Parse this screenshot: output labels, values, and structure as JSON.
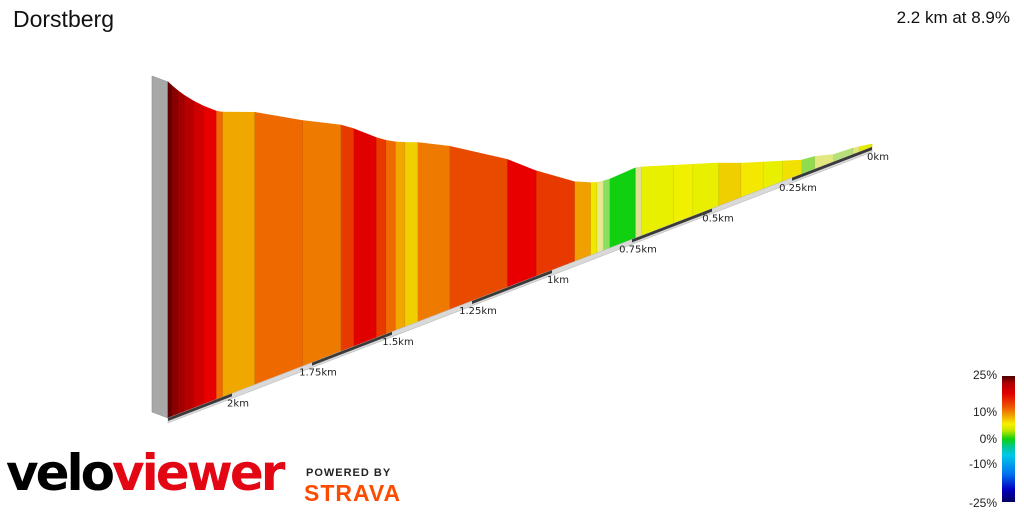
{
  "header": {
    "title": "Dorstberg",
    "summary": "2.2 km at 8.9%"
  },
  "chart_data": {
    "type": "area",
    "title": "Dorstberg",
    "subtitle": "2.2 km at 8.9%",
    "x_unit": "km",
    "x_ticks": [
      "0km",
      "0.25km",
      "0.5km",
      "0.75km",
      "1km",
      "1.25km",
      "1.5km",
      "1.75km",
      "2km"
    ],
    "x_tick_values": [
      0,
      0.25,
      0.5,
      0.75,
      1.0,
      1.25,
      1.5,
      1.75,
      2.0
    ],
    "xlim": [
      0,
      2.2
    ],
    "segments": [
      {
        "start": 0.0,
        "end": 0.04,
        "grade": 3,
        "color": "#e5ea00"
      },
      {
        "start": 0.04,
        "end": 0.06,
        "grade": 3,
        "color": "#e0e87a"
      },
      {
        "start": 0.06,
        "end": 0.12,
        "grade": 1,
        "color": "#b8e07a"
      },
      {
        "start": 0.12,
        "end": 0.18,
        "grade": 5,
        "color": "#e3e77f"
      },
      {
        "start": 0.18,
        "end": 0.22,
        "grade": 2,
        "color": "#8fdc50"
      },
      {
        "start": 0.22,
        "end": 0.28,
        "grade": 6,
        "color": "#f2e100"
      },
      {
        "start": 0.28,
        "end": 0.34,
        "grade": 6,
        "color": "#e8f000"
      },
      {
        "start": 0.34,
        "end": 0.41,
        "grade": 6,
        "color": "#f5e800"
      },
      {
        "start": 0.41,
        "end": 0.48,
        "grade": 7,
        "color": "#f0cf00"
      },
      {
        "start": 0.48,
        "end": 0.56,
        "grade": 6,
        "color": "#e8f000"
      },
      {
        "start": 0.56,
        "end": 0.62,
        "grade": 6,
        "color": "#f0f000"
      },
      {
        "start": 0.62,
        "end": 0.72,
        "grade": 6,
        "color": "#e8f000"
      },
      {
        "start": 0.72,
        "end": 0.74,
        "grade": 4,
        "color": "#e0e090"
      },
      {
        "start": 0.74,
        "end": 0.82,
        "grade": -1,
        "color": "#10d010"
      },
      {
        "start": 0.82,
        "end": 0.84,
        "grade": 2,
        "color": "#88e060"
      },
      {
        "start": 0.84,
        "end": 0.86,
        "grade": 3,
        "color": "#e8e890"
      },
      {
        "start": 0.86,
        "end": 0.88,
        "grade": 6,
        "color": "#f0e800"
      },
      {
        "start": 0.88,
        "end": 0.93,
        "grade": 8,
        "color": "#f0a000"
      },
      {
        "start": 0.93,
        "end": 1.05,
        "grade": 12,
        "color": "#e83a00"
      },
      {
        "start": 1.05,
        "end": 1.14,
        "grade": 14,
        "color": "#e80000"
      },
      {
        "start": 1.14,
        "end": 1.32,
        "grade": 11,
        "color": "#e84a00"
      },
      {
        "start": 1.32,
        "end": 1.42,
        "grade": 9,
        "color": "#ee7a00"
      },
      {
        "start": 1.42,
        "end": 1.46,
        "grade": 7,
        "color": "#f0cf00"
      },
      {
        "start": 1.46,
        "end": 1.49,
        "grade": 8,
        "color": "#f0a800"
      },
      {
        "start": 1.49,
        "end": 1.52,
        "grade": 10,
        "color": "#ee6a00"
      },
      {
        "start": 1.52,
        "end": 1.55,
        "grade": 12,
        "color": "#e83a00"
      },
      {
        "start": 1.55,
        "end": 1.62,
        "grade": 14,
        "color": "#e00000"
      },
      {
        "start": 1.62,
        "end": 1.66,
        "grade": 12,
        "color": "#e83a00"
      },
      {
        "start": 1.66,
        "end": 1.78,
        "grade": 9,
        "color": "#ee7a00"
      },
      {
        "start": 1.78,
        "end": 1.93,
        "grade": 10,
        "color": "#ee6a00"
      },
      {
        "start": 1.93,
        "end": 2.03,
        "grade": 7,
        "color": "#f0a800"
      },
      {
        "start": 2.03,
        "end": 2.05,
        "grade": 10,
        "color": "#ee6a00"
      },
      {
        "start": 2.05,
        "end": 2.09,
        "grade": 14,
        "color": "#e80000"
      },
      {
        "start": 2.09,
        "end": 2.12,
        "grade": 16,
        "color": "#d00000"
      },
      {
        "start": 2.12,
        "end": 2.15,
        "grade": 18,
        "color": "#b80000"
      },
      {
        "start": 2.15,
        "end": 2.17,
        "grade": 20,
        "color": "#a00000"
      },
      {
        "start": 2.17,
        "end": 2.19,
        "grade": 22,
        "color": "#880000"
      },
      {
        "start": 2.19,
        "end": 2.2,
        "grade": 24,
        "color": "#600000"
      }
    ],
    "color_scale": {
      "labels": [
        "25%",
        "10%",
        "0%",
        "-10%",
        "-25%"
      ],
      "values": [
        25,
        10,
        0,
        -10,
        -25
      ]
    }
  },
  "branding": {
    "logo_left": "velo",
    "logo_right": "viewer",
    "powered_by": "POWERED BY",
    "strava": "STRAVA"
  }
}
